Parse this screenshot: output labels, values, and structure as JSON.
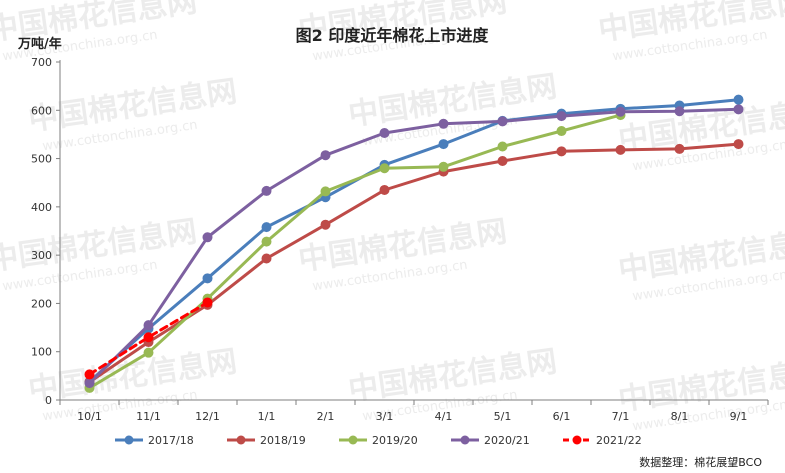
{
  "chart_data": {
    "type": "line",
    "title": "图2  印度近年棉花上市进度",
    "ylabel": "万吨/年",
    "xlabel": "",
    "ylim": [
      0,
      700
    ],
    "yticks": [
      0,
      100,
      200,
      300,
      400,
      500,
      600,
      700
    ],
    "categories": [
      "10/1",
      "11/1",
      "12/1",
      "1/1",
      "2/1",
      "3/1",
      "4/1",
      "5/1",
      "6/1",
      "7/1",
      "8/1",
      "9/1"
    ],
    "grid": false,
    "legend_position": "bottom",
    "series": [
      {
        "name": "2017/18",
        "color": "#4a7ebb",
        "dashed": false,
        "values": [
          38,
          148,
          252,
          358,
          420,
          487,
          530,
          578,
          593,
          603,
          610,
          622
        ]
      },
      {
        "name": "2018/19",
        "color": "#be4b48",
        "dashed": false,
        "values": [
          37,
          120,
          197,
          293,
          363,
          435,
          473,
          495,
          515,
          518,
          520,
          530
        ]
      },
      {
        "name": "2019/20",
        "color": "#98b954",
        "dashed": false,
        "values": [
          25,
          98,
          210,
          328,
          432,
          480,
          483,
          525,
          557,
          590,
          null,
          null
        ]
      },
      {
        "name": "2020/21",
        "color": "#7d60a0",
        "dashed": false,
        "values": [
          35,
          155,
          337,
          433,
          507,
          553,
          572,
          577,
          588,
          597,
          598,
          602
        ]
      },
      {
        "name": "2021/22",
        "color": "#ff0000",
        "dashed": true,
        "values": [
          53,
          130,
          202,
          null,
          null,
          null,
          null,
          null,
          null,
          null,
          null,
          null
        ]
      }
    ],
    "source": "数据整理：棉花展望BCO"
  },
  "watermark": {
    "text": "中国棉花信息网",
    "url": "www.cottonchina.org.cn"
  }
}
